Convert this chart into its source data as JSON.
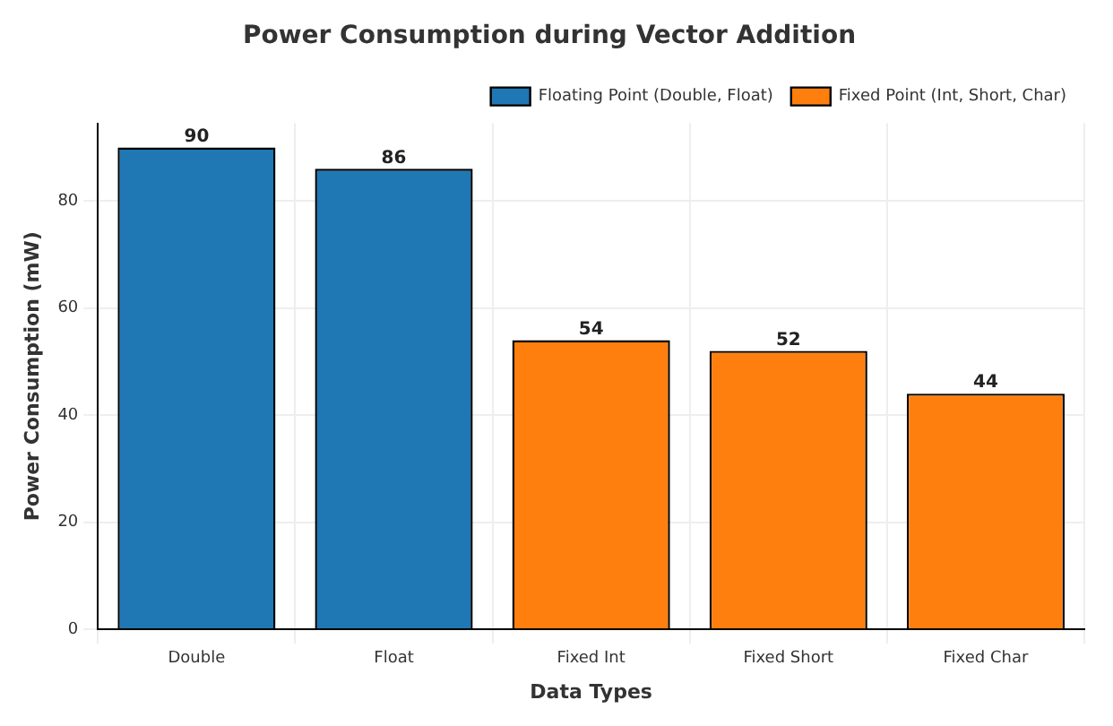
{
  "chart_data": {
    "type": "bar",
    "title": "Power Consumption during Vector Addition",
    "xlabel": "Data Types",
    "ylabel": "Power Consumption (mW)",
    "categories": [
      "Double",
      "Float",
      "Fixed Int",
      "Fixed Short",
      "Fixed Char"
    ],
    "series": [
      {
        "name": "Floating Point (Double, Float)",
        "color": "#1f77b4",
        "values": [
          90,
          86,
          null,
          null,
          null
        ]
      },
      {
        "name": "Fixed Point (Int, Short, Char)",
        "color": "#ff7f0e",
        "values": [
          null,
          null,
          54,
          52,
          44
        ]
      }
    ],
    "ylim": [
      0,
      94.5
    ],
    "yticks": [
      0,
      20,
      40,
      60,
      80
    ],
    "grid": true,
    "legend": "top right",
    "data_labels": true
  }
}
